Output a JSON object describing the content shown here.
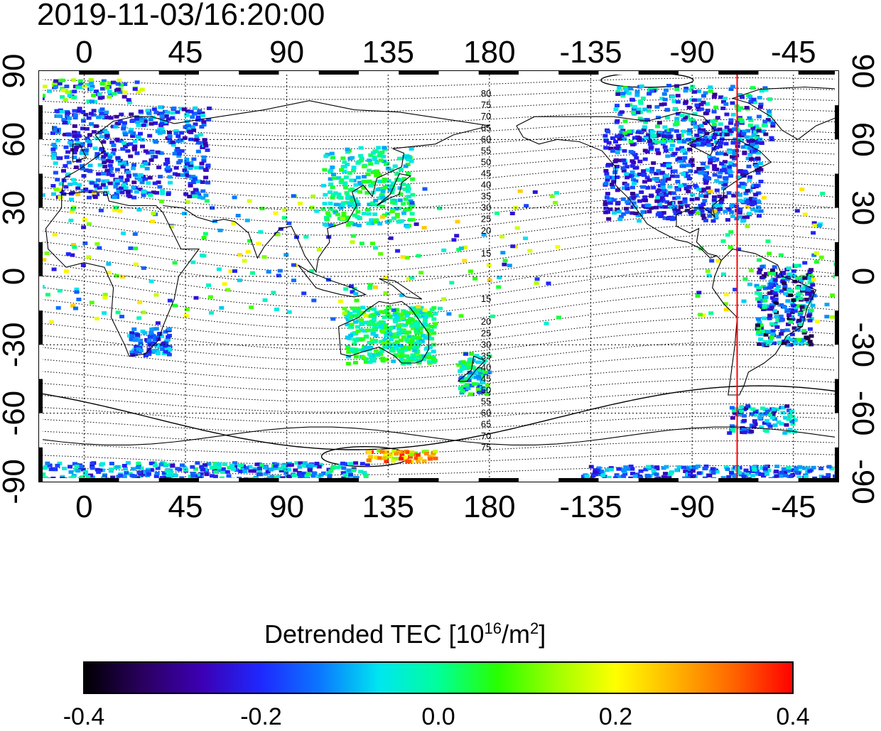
{
  "timestamp": "2019-11-03/16:20:00",
  "map": {
    "lon_tick_labels": [
      "0",
      "45",
      "90",
      "135",
      "180",
      "-135",
      "-90",
      "-45"
    ],
    "lat_tick_labels": [
      "90",
      "60",
      "30",
      "0",
      "-30",
      "-60",
      "-90"
    ],
    "contour_labels_north": [
      "80",
      "75",
      "70",
      "65",
      "60",
      "55",
      "50",
      "45",
      "40",
      "35",
      "30",
      "25",
      "20",
      "15"
    ],
    "contour_labels_south": [
      "15",
      "20",
      "25",
      "30",
      "35",
      "40",
      "45",
      "50",
      "55",
      "60",
      "65",
      "70",
      "75"
    ],
    "marker_line_longitude": -70,
    "marker_line_color": "#ff0000"
  },
  "colorbar": {
    "title_text": "Detrended TEC  [10",
    "title_exp": "16",
    "title_unit": "/m",
    "title_unit_exp": "2",
    "title_close": "]",
    "min": -0.4,
    "max": 0.4,
    "tick_labels": [
      "-0.4",
      "-0.2",
      "0.0",
      "0.2",
      "0.4"
    ],
    "colors": [
      "#000000",
      "#2a0060",
      "#3c00b4",
      "#1e28ff",
      "#0a78ff",
      "#00e6f0",
      "#00ff9a",
      "#28ff00",
      "#a0ff00",
      "#ffff00",
      "#ffb400",
      "#ff6400",
      "#ff0000"
    ]
  }
}
